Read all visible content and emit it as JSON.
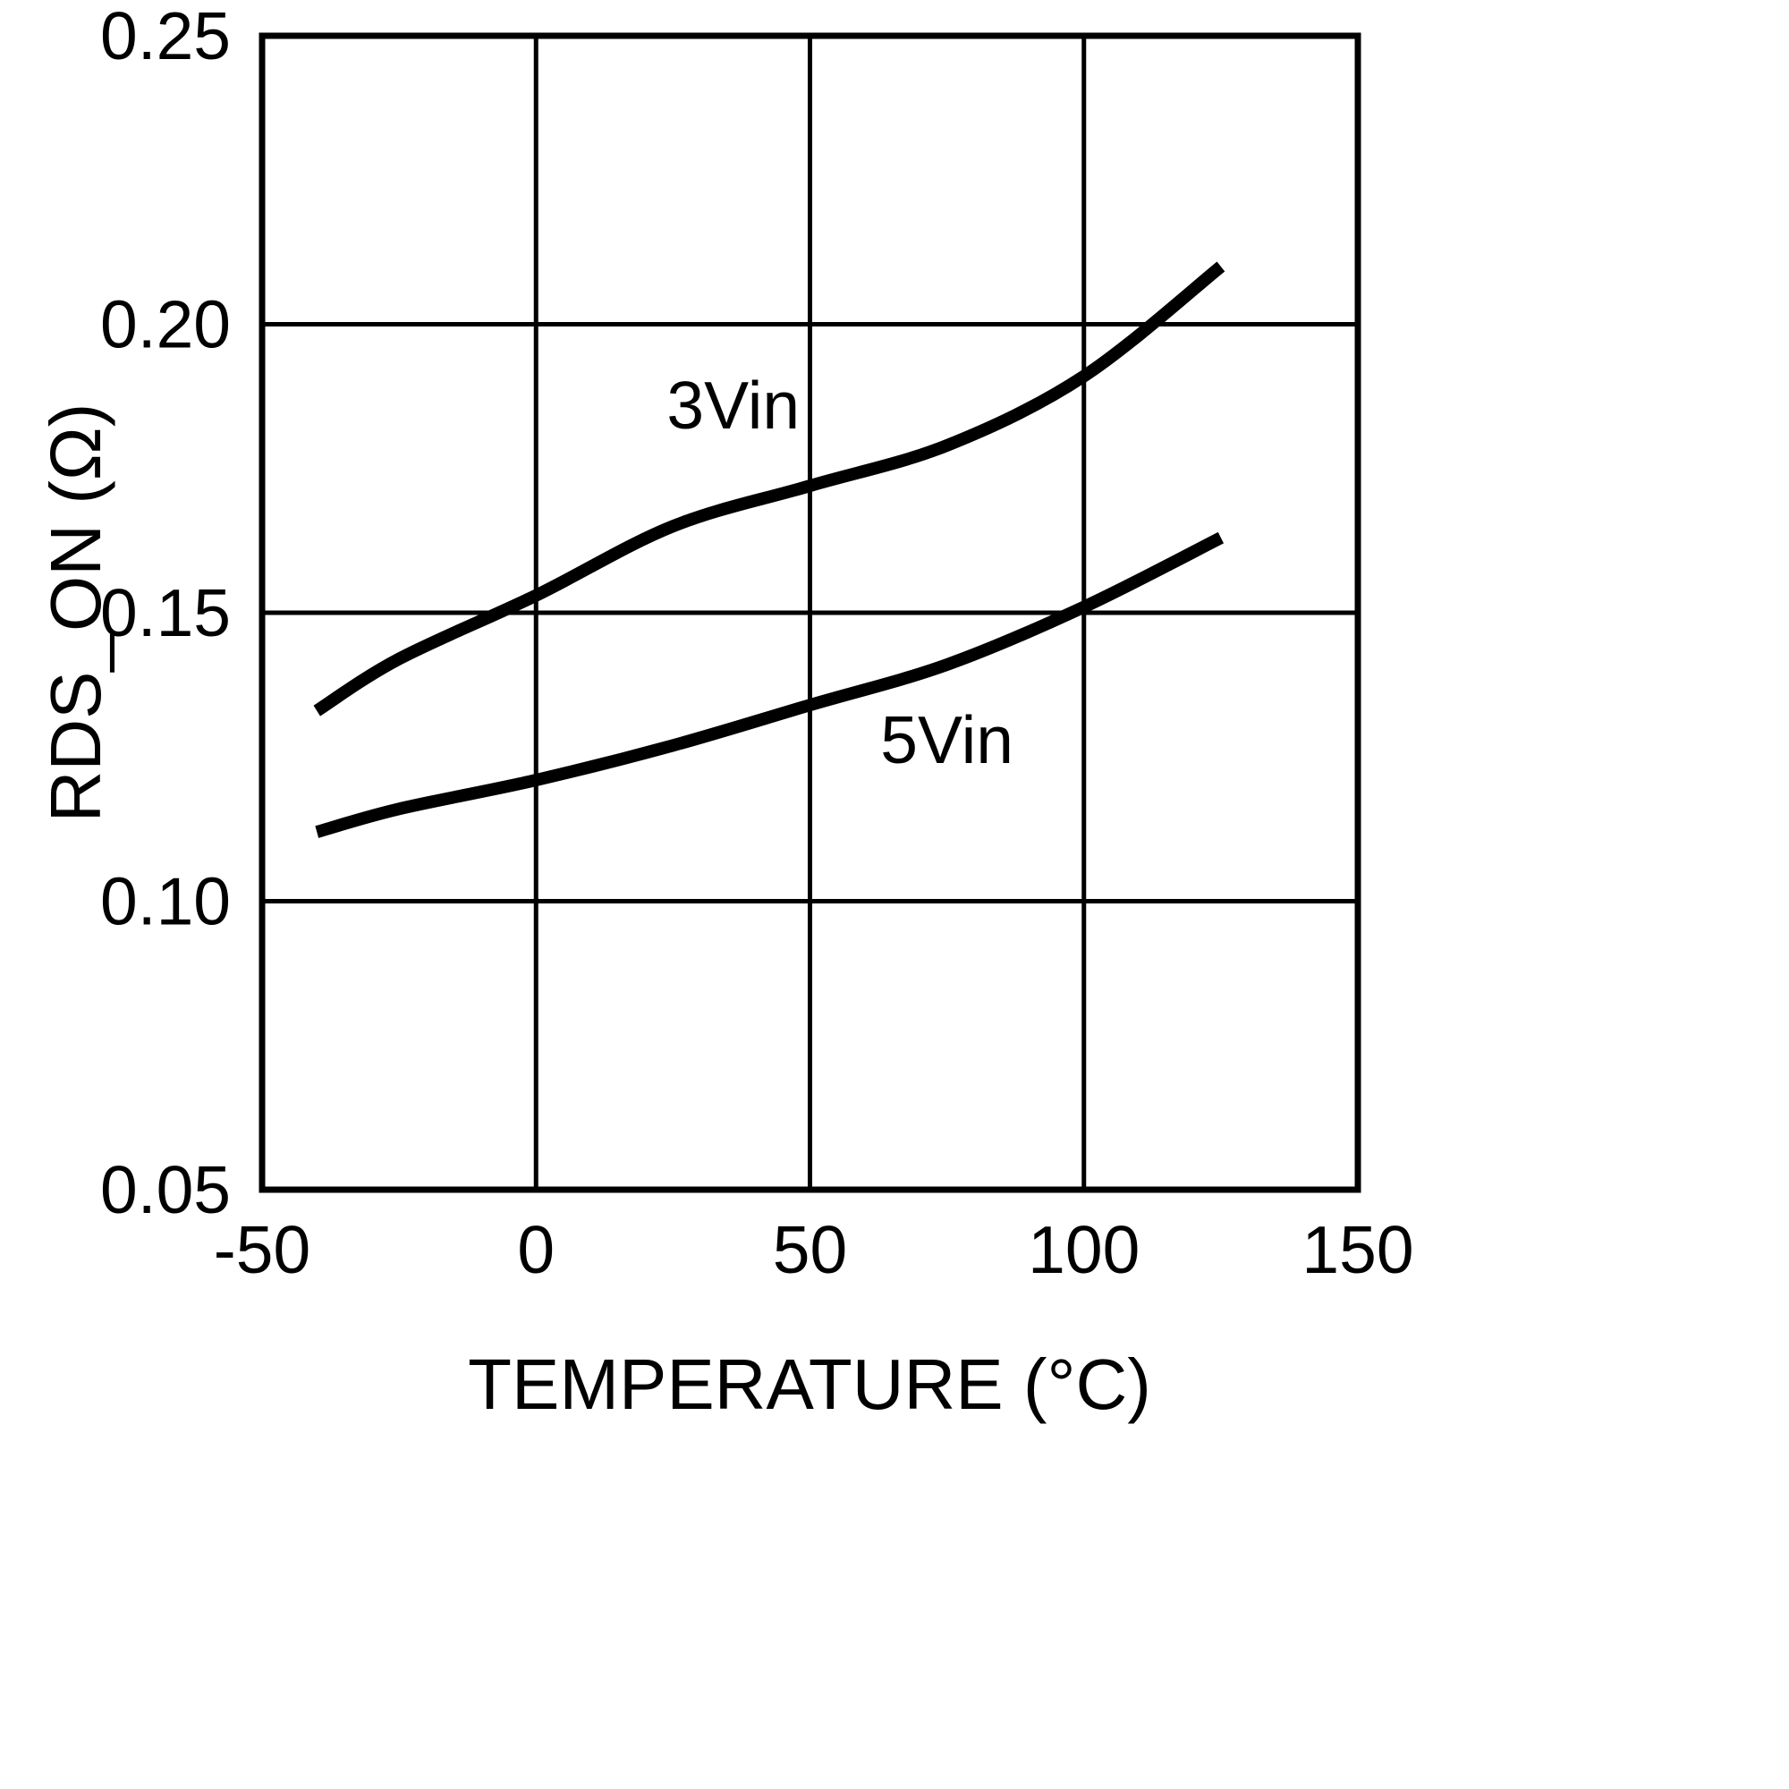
{
  "page": {
    "background": "#ffffff",
    "foreground": "#000000"
  },
  "chart_data": {
    "type": "line",
    "title": "",
    "xlabel": "TEMPERATURE (°C)",
    "ylabel": "RDS_ON (Ω)",
    "xlim": [
      -50,
      150
    ],
    "ylim": [
      0.05,
      0.25
    ],
    "x_ticks": [
      -50,
      0,
      50,
      100,
      150
    ],
    "x_tick_labels": [
      "-50",
      "0",
      "50",
      "100",
      "150"
    ],
    "y_ticks": [
      0.05,
      0.1,
      0.15,
      0.2,
      0.25
    ],
    "y_tick_labels": [
      "0.05",
      "0.10",
      "0.15",
      "0.20",
      "0.25"
    ],
    "grid": true,
    "legend_position": "inline-annotations",
    "line_color": "#000000",
    "x": [
      -40,
      -25,
      0,
      25,
      50,
      75,
      100,
      125
    ],
    "series": [
      {
        "name": "3Vin",
        "values": [
          0.133,
          0.142,
          0.153,
          0.165,
          0.172,
          0.179,
          0.191,
          0.21
        ]
      },
      {
        "name": "5Vin",
        "values": [
          0.112,
          0.116,
          0.121,
          0.127,
          0.134,
          0.141,
          0.151,
          0.163
        ]
      }
    ],
    "annotations": [
      {
        "text": "3Vin",
        "x": 36,
        "y": 0.186
      },
      {
        "text": "5Vin",
        "x": 75,
        "y": 0.128
      }
    ]
  }
}
